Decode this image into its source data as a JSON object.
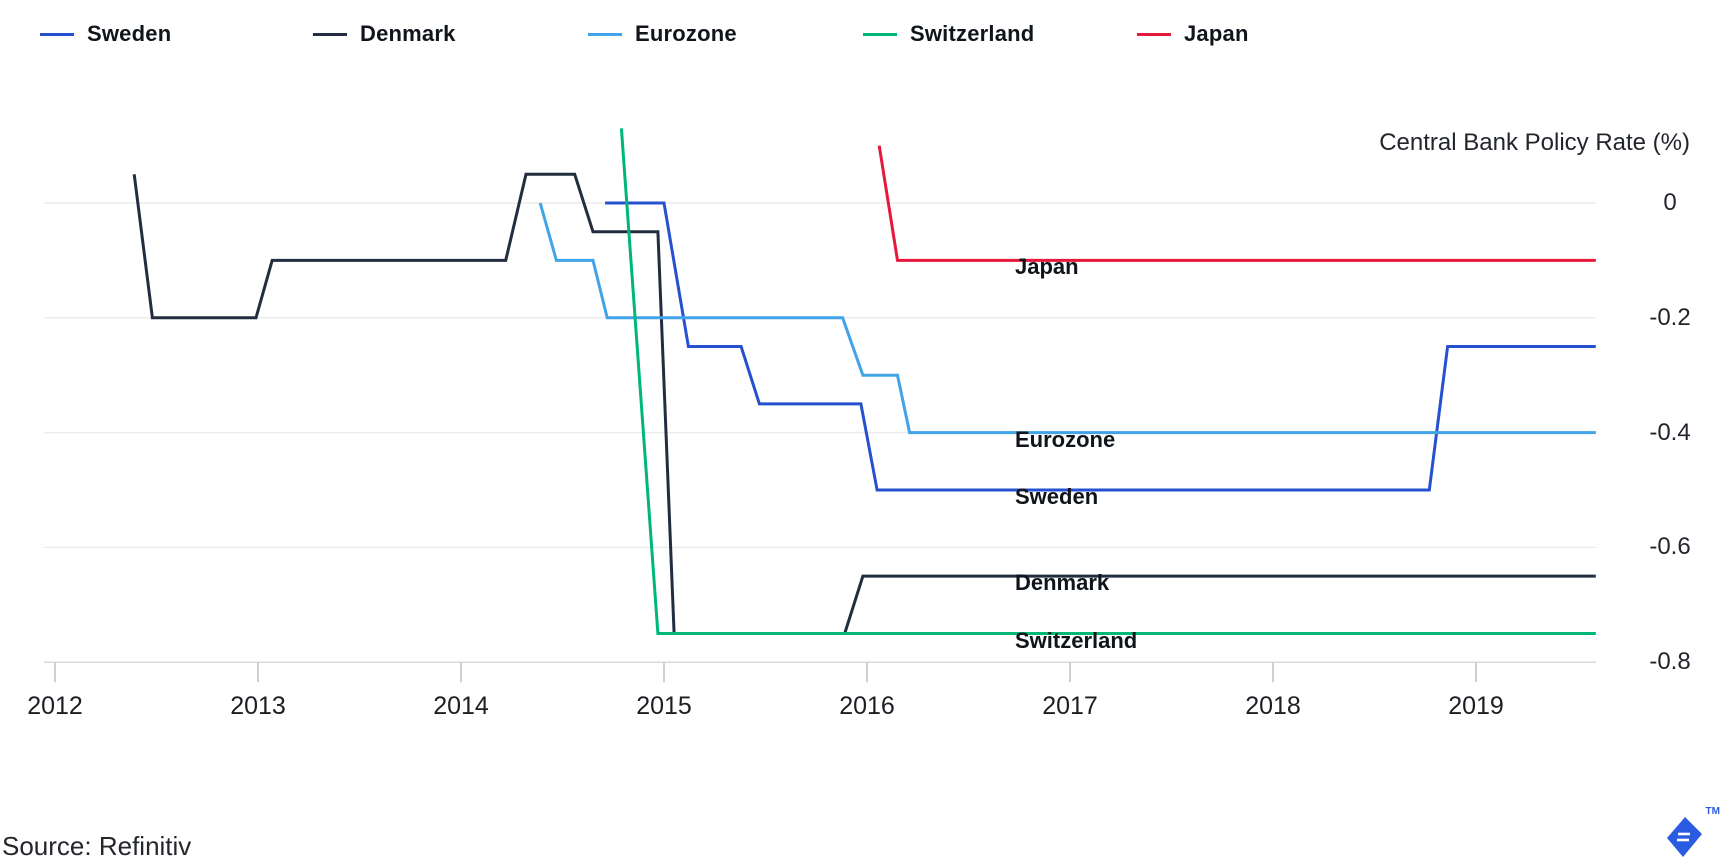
{
  "source": "Source: Refinitiv",
  "logo_tm": "TM",
  "chart_data": {
    "type": "line",
    "title": "Central Bank Policy Rate (%)",
    "unit": "%",
    "legend_position": "top",
    "x_axis": {
      "ticks": [
        2012,
        2013,
        2014,
        2015,
        2016,
        2017,
        2018,
        2019
      ],
      "labels": [
        "2012",
        "2013",
        "2014",
        "2015",
        "2016",
        "2017",
        "2018",
        "2019"
      ],
      "range": [
        2011.95,
        2019.6
      ]
    },
    "y_axis": {
      "ticks": [
        0,
        -0.2,
        -0.4,
        -0.6,
        -0.8
      ],
      "labels": [
        "0",
        "-0.2",
        "-0.4",
        "-0.6",
        "-0.8"
      ],
      "range": [
        -0.8,
        0.135
      ],
      "grid": true,
      "label_side": "right"
    },
    "series": [
      {
        "name": "Sweden",
        "color": "#2551d0",
        "points": [
          [
            2014.71,
            0
          ],
          [
            2015.0,
            0
          ],
          [
            2015.12,
            -0.25
          ],
          [
            2015.38,
            -0.25
          ],
          [
            2015.47,
            -0.35
          ],
          [
            2015.97,
            -0.35
          ],
          [
            2016.05,
            -0.5
          ],
          [
            2018.77,
            -0.5
          ],
          [
            2018.86,
            -0.25
          ],
          [
            2019.59,
            -0.25
          ]
        ]
      },
      {
        "name": "Denmark",
        "color": "#222e40",
        "points": [
          [
            2012.39,
            0.05
          ],
          [
            2012.48,
            -0.2
          ],
          [
            2012.99,
            -0.2
          ],
          [
            2013.07,
            -0.1
          ],
          [
            2014.22,
            -0.1
          ],
          [
            2014.32,
            0.05
          ],
          [
            2014.56,
            0.05
          ],
          [
            2014.65,
            -0.05
          ],
          [
            2014.97,
            -0.05
          ],
          [
            2015.05,
            -0.75
          ],
          [
            2015.89,
            -0.75
          ],
          [
            2015.98,
            -0.65
          ],
          [
            2019.59,
            -0.65
          ]
        ]
      },
      {
        "name": "Eurozone",
        "color": "#41a3e8",
        "points": [
          [
            2014.39,
            0
          ],
          [
            2014.47,
            -0.1
          ],
          [
            2014.65,
            -0.1
          ],
          [
            2014.72,
            -0.2
          ],
          [
            2015.88,
            -0.2
          ],
          [
            2015.98,
            -0.3
          ],
          [
            2016.15,
            -0.3
          ],
          [
            2016.21,
            -0.4
          ],
          [
            2019.59,
            -0.4
          ]
        ]
      },
      {
        "name": "Switzerland",
        "color": "#00b876",
        "points": [
          [
            2014.79,
            0.13
          ],
          [
            2014.97,
            -0.75
          ],
          [
            2019.59,
            -0.75
          ]
        ]
      },
      {
        "name": "Japan",
        "color": "#e6183c",
        "points": [
          [
            2016.06,
            0.1
          ],
          [
            2016.15,
            -0.1
          ],
          [
            2019.59,
            -0.1
          ]
        ]
      }
    ],
    "inline_labels": [
      "Sweden",
      "Denmark",
      "Eurozone",
      "Switzerland",
      "Japan"
    ]
  }
}
